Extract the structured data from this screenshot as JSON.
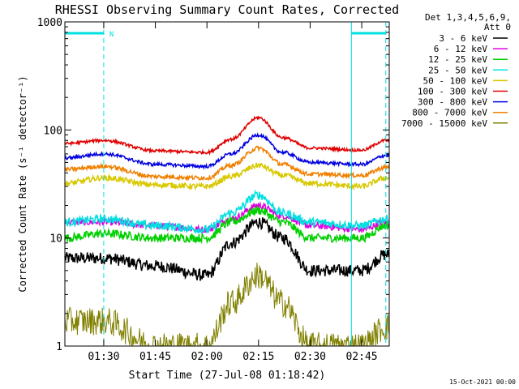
{
  "chart_data": {
    "type": "line",
    "title": "RHESSI Observing Summary Count Rates, Corrected",
    "xlabel": "Start Time (27-Jul-08 01:18:42)",
    "ylabel": "Corrected Count Rate (s⁻¹ detector⁻¹)",
    "yscale": "log",
    "xlim": [
      "01:18:42",
      "02:53:00"
    ],
    "ylim": [
      1,
      1000
    ],
    "x_ticks": [
      "01:30",
      "01:45",
      "02:00",
      "02:15",
      "02:30",
      "02:45"
    ],
    "y_ticks": [
      "1",
      "10",
      "100",
      "1000"
    ],
    "legend_header": [
      "Det 1,3,4,5,6,9,",
      "Att 0"
    ],
    "legend_placement": "right",
    "x": [
      "01:18:42",
      "01:30",
      "01:45",
      "02:00",
      "02:07",
      "02:15",
      "02:22",
      "02:30",
      "02:45",
      "02:52"
    ],
    "series": [
      {
        "name": "3 - 6 keV",
        "color": "#000000",
        "values": [
          6.5,
          6.5,
          5.5,
          4.5,
          9,
          14,
          10,
          5,
          5,
          7
        ]
      },
      {
        "name": "6 - 12 keV",
        "color": "#e000e0",
        "values": [
          14,
          14,
          13,
          12,
          15,
          20,
          16,
          13,
          12,
          14
        ]
      },
      {
        "name": "12 - 25 keV",
        "color": "#00d000",
        "values": [
          10,
          11,
          10,
          10,
          14,
          18,
          14,
          10,
          10,
          13
        ]
      },
      {
        "name": "25 - 50 keV",
        "color": "#00e0e0",
        "values": [
          14,
          15,
          13,
          12,
          17,
          25,
          17,
          14,
          13,
          15
        ]
      },
      {
        "name": "50 - 100 keV",
        "color": "#d8c800",
        "values": [
          32,
          36,
          31,
          30,
          37,
          47,
          38,
          32,
          30,
          36
        ]
      },
      {
        "name": "100 - 300 keV",
        "color": "#e00000",
        "values": [
          75,
          80,
          64,
          62,
          82,
          130,
          85,
          68,
          65,
          80
        ]
      },
      {
        "name": "300 - 800 keV",
        "color": "#0000e0",
        "values": [
          55,
          60,
          48,
          46,
          60,
          90,
          62,
          50,
          48,
          58
        ]
      },
      {
        "name": "800 - 7000 keV",
        "color": "#f08000",
        "values": [
          43,
          46,
          37,
          36,
          47,
          68,
          48,
          39,
          38,
          45
        ]
      },
      {
        "name": "7000 - 15000 keV",
        "color": "#808000",
        "values": [
          1.7,
          1.7,
          1,
          1,
          2.5,
          4.5,
          2.5,
          1,
          1,
          1.5
        ]
      }
    ],
    "annotations": {
      "flag_label": "N",
      "flag_bars": [
        [
          "01:18:42",
          "01:30"
        ],
        [
          "02:42",
          "02:52"
        ]
      ],
      "cyan_dashed_lines": [
        "01:30",
        "02:52"
      ],
      "cyan_solid_lines": [
        "01:18:42",
        "02:42"
      ]
    },
    "grid": false
  },
  "footer_date": "15-Oct-2021 00:00",
  "colors": {
    "background": "#ffffff",
    "axis": "#000000",
    "flag": "#00e0e0"
  }
}
